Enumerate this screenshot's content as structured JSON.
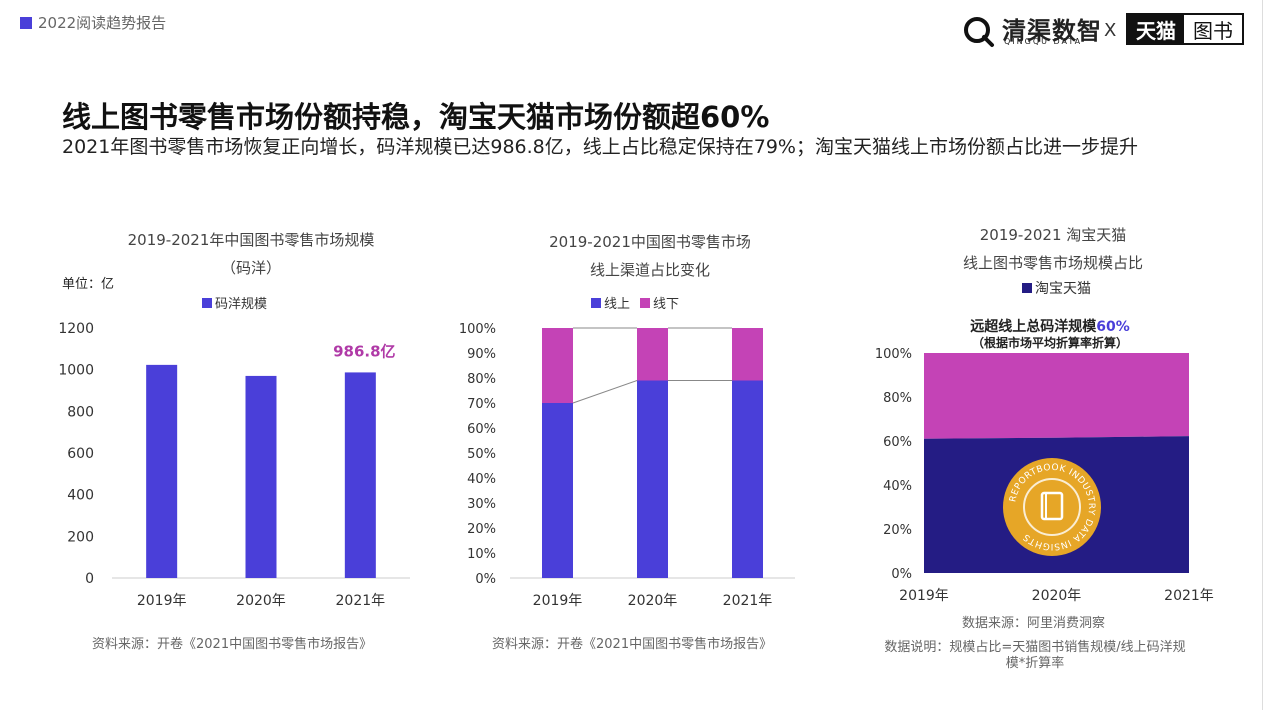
{
  "header": {
    "report_tag": "2022阅读趋势报告",
    "logo_name": "清渠数智",
    "logo_sub": "QINGQU DATA",
    "x_sep": "X",
    "tmall_a": "天猫",
    "tmall_b": "图书",
    "colors": {
      "accent": "#4a3fd9"
    }
  },
  "main": {
    "title": "线上图书零售市场份额持稳，淘宝天猫市场份额超60%",
    "subtitle": "2021年图书零售市场恢复正向增长，码洋规模已达986.8亿，线上占比稳定保持在79%；淘宝天猫线上市场份额占比进一步提升"
  },
  "chart_data": [
    {
      "type": "bar",
      "title": "2019-2021年中国图书零售市场规模",
      "subtitle": "（码洋）",
      "unit_label": "单位：亿",
      "categories": [
        "2019年",
        "2020年",
        "2021年"
      ],
      "series": [
        {
          "name": "码洋规模",
          "values": [
            1023,
            970,
            986.8
          ],
          "color": "#4a3fd9"
        }
      ],
      "ylim": [
        0,
        1200
      ],
      "yticks": [
        "0",
        "200",
        "400",
        "600",
        "800",
        "1000",
        "1200"
      ],
      "annotation": {
        "text": "986.8亿",
        "category": "2021年",
        "color": "#b03aa7"
      },
      "source": "资料来源：开卷《2021中国图书零售市场报告》"
    },
    {
      "type": "bar",
      "stacked": true,
      "title": "2019-2021中国图书零售市场",
      "subtitle": "线上渠道占比变化",
      "categories": [
        "2019年",
        "2020年",
        "2021年"
      ],
      "series": [
        {
          "name": "线上",
          "values": [
            70,
            79,
            79
          ],
          "color": "#4a3fd9"
        },
        {
          "name": "线下",
          "values": [
            30,
            21,
            21
          ],
          "color": "#c443b6"
        }
      ],
      "ylim": [
        0,
        100
      ],
      "yticks": [
        "0%",
        "10%",
        "20%",
        "30%",
        "40%",
        "50%",
        "60%",
        "70%",
        "80%",
        "90%",
        "100%"
      ],
      "source": "资料来源：开卷《2021中国图书零售市场报告》"
    },
    {
      "type": "area",
      "stacked": true,
      "title": "2019-2021 淘宝天猫",
      "subtitle": "线上图书零售市场规模占比",
      "x": [
        "2019年",
        "2020年",
        "2021年"
      ],
      "series": [
        {
          "name": "淘宝天猫",
          "values": [
            61,
            61.5,
            62.2
          ],
          "color": "#241c84"
        },
        {
          "name": "",
          "values": [
            39,
            38.5,
            37.8
          ],
          "color": "#c443b6"
        }
      ],
      "ylim": [
        0,
        100
      ],
      "yticks": [
        "0%",
        "20%",
        "40%",
        "60%",
        "80%",
        "100%"
      ],
      "callout": {
        "prefix": "远超线上总码洋规模",
        "highlight": "60%",
        "note": "（根据市场平均折算率折算）",
        "highlight_color": "#4a3fd9"
      },
      "badge_text": "REPORTBOOK INDUSTRY DATA INSIGHTS",
      "source": "数据来源：阿里消费洞察",
      "note": "数据说明：规模占比=天猫图书销售规模/线上码洋规模*折算率"
    }
  ]
}
